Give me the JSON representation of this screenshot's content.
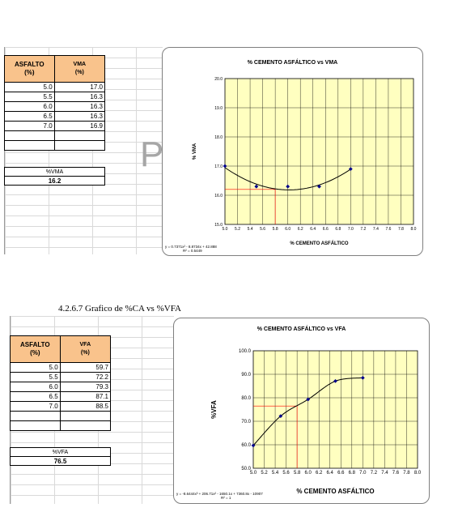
{
  "top": {
    "table": {
      "headers": [
        "ASFALTO\n(%)",
        "VMA\n(%)"
      ],
      "rows": [
        [
          "5.0",
          "17.0"
        ],
        [
          "5.5",
          "16.3"
        ],
        [
          "6.0",
          "16.3"
        ],
        [
          "6.5",
          "16.3"
        ],
        [
          "7.0",
          "16.9"
        ]
      ]
    },
    "summary": {
      "label": "%VMA",
      "value": "16.2"
    },
    "equation": "y = 0.7371x² - 8.8734x + 42.888",
    "r2": "R² = 0.5449"
  },
  "bottom": {
    "caption": "4.2.6.7 Grafico de %CA vs %VFA",
    "table": {
      "headers": [
        "ASFALTO\n(%)",
        "VFA\n(%)"
      ],
      "rows": [
        [
          "5.0",
          "59.7"
        ],
        [
          "5.5",
          "72.2"
        ],
        [
          "6.0",
          "79.3"
        ],
        [
          "6.5",
          "87.1"
        ],
        [
          "7.0",
          "88.5"
        ]
      ]
    },
    "summary": {
      "label": "%VFA",
      "value": "76.5"
    },
    "equation": "y = -8.6444x³ + 206.71x² - 1650.1x + 7360.8x - 10907",
    "r2": "R² = 1"
  },
  "watermark": "P",
  "chart_data": [
    {
      "type": "scatter",
      "title": "% CEMENTO ASFÁLTICO vs VMA",
      "xlabel": "% CEMENTO ASFÁLTICO",
      "ylabel": "% VMA",
      "x": [
        5.0,
        5.5,
        6.0,
        6.5,
        7.0
      ],
      "y": [
        17.0,
        16.3,
        16.3,
        16.3,
        16.9
      ],
      "xlim": [
        5.0,
        8.0
      ],
      "ylim": [
        15.0,
        20.0
      ],
      "xticks": [
        "5.0",
        "5.2",
        "5.4",
        "5.6",
        "5.8",
        "6.0",
        "6.2",
        "6.4",
        "6.6",
        "6.8",
        "7.0",
        "7.2",
        "7.4",
        "7.6",
        "7.8",
        "8.0"
      ],
      "yticks": [
        "15.0",
        "16.0",
        "17.0",
        "18.0",
        "19.0",
        "20.0"
      ],
      "trendline": {
        "type": "polynomial",
        "coefficients": [
          0.7371,
          -8.8734,
          42.888
        ]
      },
      "reference": {
        "x": 5.8,
        "y": 16.2
      },
      "colors": {
        "plot_bg": "#ffffc0",
        "marker": "#00008b",
        "ref": "#ff0000"
      },
      "grid": true
    },
    {
      "type": "scatter",
      "title": "% CEMENTO ASFÁLTICO vs VFA",
      "xlabel": "% CEMENTO ASFÁLTICO",
      "ylabel": "%VFA",
      "x": [
        5.0,
        5.5,
        6.0,
        6.5,
        7.0
      ],
      "y": [
        59.7,
        72.2,
        79.3,
        87.1,
        88.5
      ],
      "xlim": [
        5.0,
        8.0
      ],
      "ylim": [
        50.0,
        100.0
      ],
      "xticks": [
        "5.0",
        "5.2",
        "5.4",
        "5.6",
        "5.8",
        "6.0",
        "6.2",
        "6.4",
        "6.6",
        "6.8",
        "7.0",
        "7.2",
        "7.4",
        "7.6",
        "7.8",
        "8.0"
      ],
      "yticks": [
        "50.0",
        "60.0",
        "70.0",
        "80.0",
        "90.0",
        "100.0"
      ],
      "trendline": {
        "type": "smooth"
      },
      "reference": {
        "x": 5.8,
        "y": 76.5
      },
      "colors": {
        "plot_bg": "#ffffc0",
        "marker": "#00008b",
        "ref": "#ff0000"
      },
      "grid": true
    }
  ]
}
